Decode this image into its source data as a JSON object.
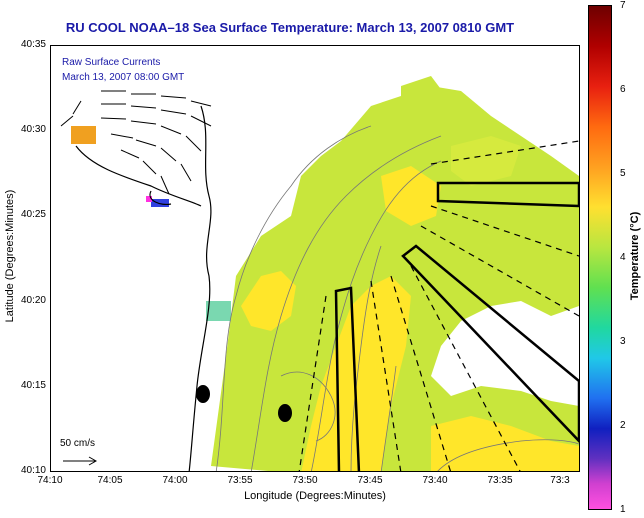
{
  "title": "RU COOL  NOAA–18  Sea Surface Temperature:  March 13, 2007 0810 GMT",
  "legend": {
    "currents_title": "Raw Surface Currents",
    "currents_date": "March 13, 2007 08:00 GMT",
    "scale_label": "50 cm/s"
  },
  "axes": {
    "xlabel": "Longitude (Degrees:Minutes)",
    "ylabel": "Latitude (Degrees:Minutes)",
    "x_ticks": [
      "74:10",
      "74:05",
      "74:00",
      "73:55",
      "73:50",
      "73:45",
      "73:40",
      "73:35",
      "73:3"
    ],
    "y_ticks": [
      "40:35",
      "40:30",
      "40:25",
      "40:20",
      "40:15",
      "40:10"
    ]
  },
  "colorbar": {
    "label": "Temperature (°C)",
    "ticks": [
      "7",
      "6",
      "5",
      "4",
      "3",
      "2",
      "1"
    ],
    "range": [
      1,
      7
    ]
  },
  "colors": {
    "title": "#1a1aa8",
    "sst_dominant": "#c8e63c",
    "sst_warm": "#ffe62a",
    "land": "#ffffff"
  }
}
